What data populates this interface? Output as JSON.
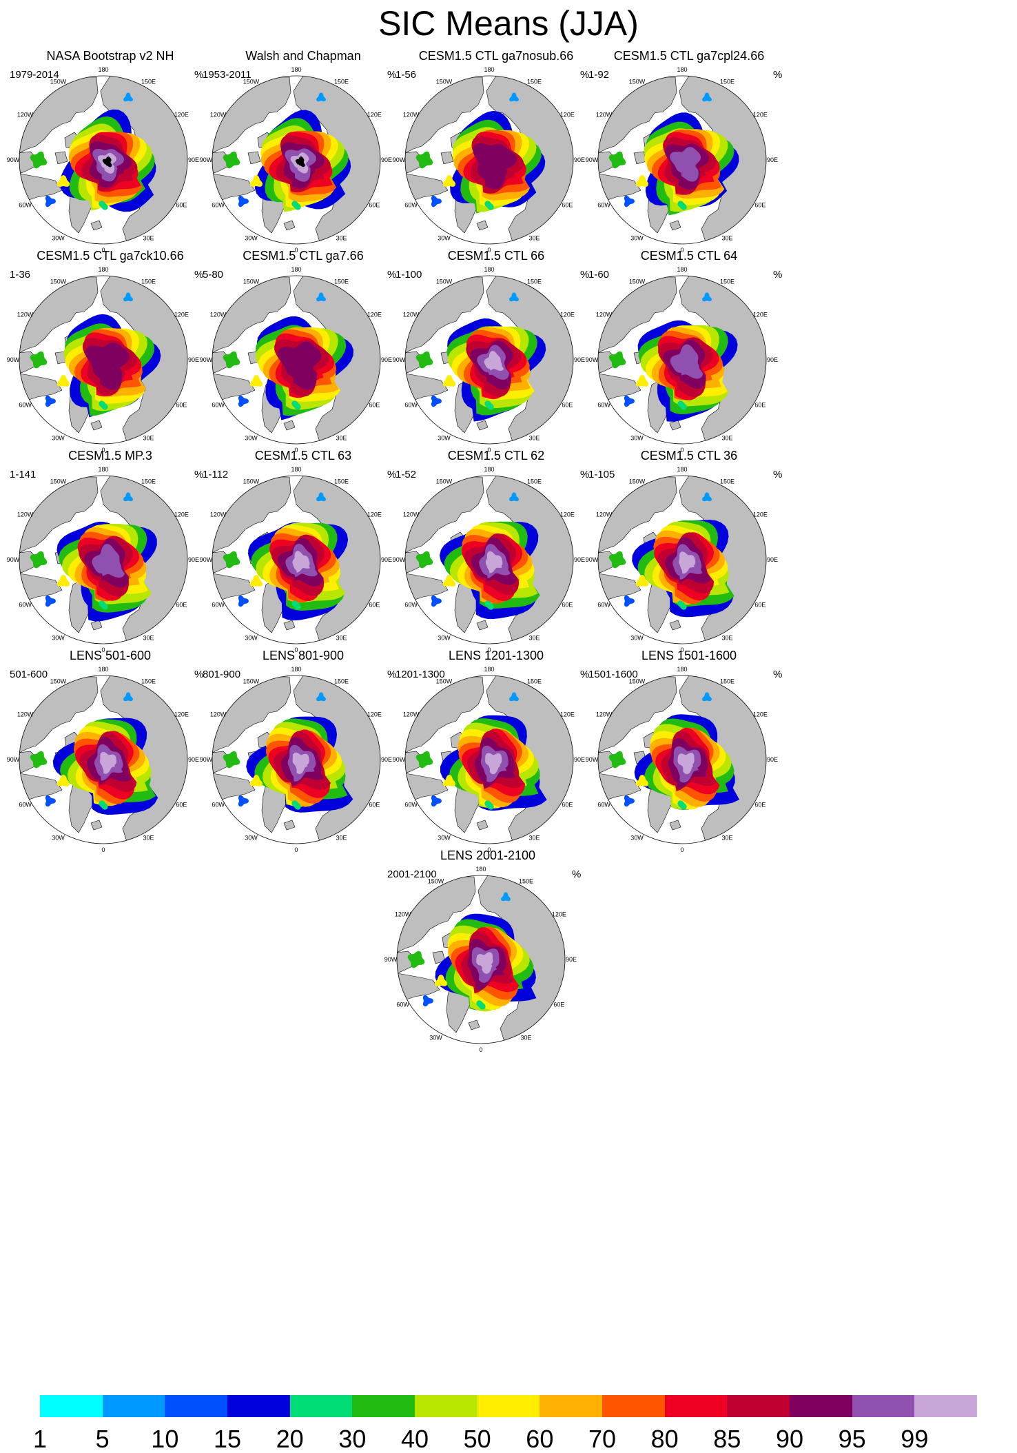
{
  "title": "SIC Means (JJA)",
  "units": "%",
  "lon_labels": [
    "180",
    "150E",
    "120E",
    "90E",
    "60E",
    "30E",
    "0",
    "30W",
    "60W",
    "90W",
    "120W",
    "150W"
  ],
  "panels": [
    {
      "title": "NASA Bootstrap v2 NH",
      "years": "1979-2014",
      "max_class": 16,
      "extent": "obs_nasa"
    },
    {
      "title": "Walsh and Chapman",
      "years": "1953-2011",
      "max_class": 15,
      "extent": "obs_walsh"
    },
    {
      "title": "CESM1.5 CTL ga7nosub.66",
      "years": "1-56",
      "max_class": 12,
      "extent": "model"
    },
    {
      "title": "CESM1.5 CTL ga7cpl24.66",
      "years": "1-92",
      "max_class": 13,
      "extent": "model"
    },
    {
      "title": "CESM1.5 CTL ga7ck10.66",
      "years": "1-36",
      "max_class": 12,
      "extent": "model"
    },
    {
      "title": "CESM1.5 CTL ga7.66",
      "years": "5-80",
      "max_class": 12,
      "extent": "model"
    },
    {
      "title": "CESM1.5 CTL 66",
      "years": "1-100",
      "max_class": 14,
      "extent": "model"
    },
    {
      "title": "CESM1.5 CTL 64",
      "years": "1-60",
      "max_class": 13,
      "extent": "model"
    },
    {
      "title": "CESM1.5 MP.3",
      "years": "1-141",
      "max_class": 13,
      "extent": "model"
    },
    {
      "title": "CESM1.5 CTL 63",
      "years": "1-112",
      "max_class": 14,
      "extent": "model"
    },
    {
      "title": "CESM1.5 CTL 62",
      "years": "1-52",
      "max_class": 14,
      "extent": "model"
    },
    {
      "title": "CESM1.5 CTL 36",
      "years": "1-105",
      "max_class": 14,
      "extent": "model"
    },
    {
      "title": "LENS 501-600",
      "years": "501-600",
      "max_class": 14,
      "extent": "model"
    },
    {
      "title": "LENS 801-900",
      "years": "801-900",
      "max_class": 14,
      "extent": "model"
    },
    {
      "title": "LENS 1201-1300",
      "years": "1201-1300",
      "max_class": 14,
      "extent": "model"
    },
    {
      "title": "LENS 1501-1600",
      "years": "1501-1600",
      "max_class": 14,
      "extent": "model"
    },
    {
      "title": "LENS 2001-2100",
      "years": "2001-2100",
      "max_class": 14,
      "extent": "model"
    }
  ],
  "colorbar": {
    "labels": [
      "1",
      "5",
      "10",
      "15",
      "20",
      "30",
      "40",
      "50",
      "60",
      "70",
      "80",
      "85",
      "90",
      "95",
      "99"
    ],
    "colors": [
      "#00ffff",
      "#0099ff",
      "#0050ff",
      "#0000dd",
      "#00dd77",
      "#22bb11",
      "#b8e600",
      "#ffee00",
      "#ffb000",
      "#ff5500",
      "#ee0022",
      "#c00030",
      "#800060",
      "#9050b0",
      "#c8a6d8"
    ]
  },
  "style": {
    "land": "#bebebe",
    "ocean": "#ffffff",
    "outline": "#000000"
  }
}
